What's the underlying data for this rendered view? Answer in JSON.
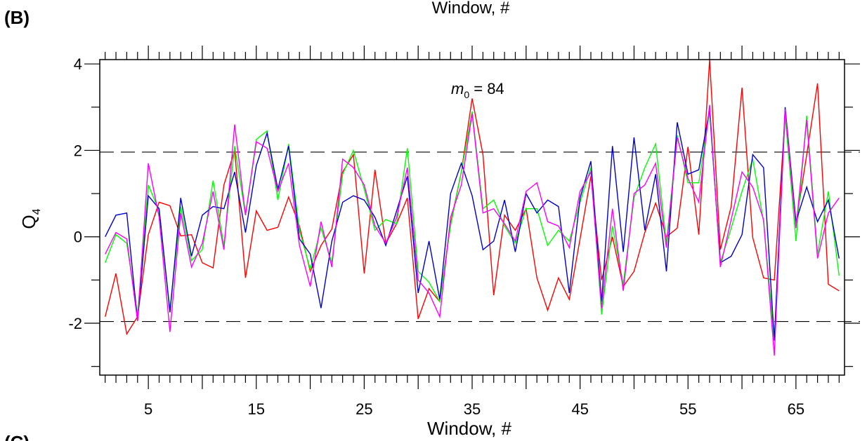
{
  "panel_label": "(B)",
  "next_panel_label": "(C)",
  "top_clipped_label": "Window, #",
  "annotation": {
    "italic": "m",
    "sub": "0",
    "rest": " = 84"
  },
  "chart_data": {
    "type": "line",
    "xlabel": "Window, #",
    "ylabel": "Q",
    "ylabel_sub": "4",
    "xlim": [
      0.5,
      69.5
    ],
    "ylim": [
      -3.2,
      4.1
    ],
    "xticks": [
      5,
      15,
      25,
      35,
      45,
      55,
      65
    ],
    "yticks": [
      -2,
      0,
      2,
      4
    ],
    "reference_lines": [
      1.96,
      -1.96
    ],
    "grid": false,
    "x": [
      1,
      2,
      3,
      4,
      5,
      6,
      7,
      8,
      9,
      10,
      11,
      12,
      13,
      14,
      15,
      16,
      17,
      18,
      19,
      20,
      21,
      22,
      23,
      24,
      25,
      26,
      27,
      28,
      29,
      30,
      31,
      32,
      33,
      34,
      35,
      36,
      37,
      38,
      39,
      40,
      41,
      42,
      43,
      44,
      45,
      46,
      47,
      48,
      49,
      50,
      51,
      52,
      53,
      54,
      55,
      56,
      57,
      58,
      59,
      60,
      61,
      62,
      63,
      64,
      65,
      66,
      67,
      68,
      69
    ],
    "series": [
      {
        "color": "#ff0000",
        "values": [
          -1.85,
          -0.85,
          -2.25,
          -1.85,
          0.05,
          0.8,
          0.72,
          0.02,
          0.05,
          -0.6,
          -0.72,
          1.2,
          2.0,
          -0.95,
          0.6,
          0.15,
          0.22,
          0.92,
          0.25,
          -0.8,
          -0.2,
          0.18,
          1.5,
          1.9,
          -0.85,
          1.55,
          -0.15,
          0.3,
          0.9,
          -1.9,
          -1.2,
          -1.5,
          0.3,
          1.5,
          3.2,
          1.9,
          -1.35,
          0.5,
          0.15,
          0.65,
          -0.95,
          -1.7,
          -0.95,
          -1.45,
          -0.05,
          1.4,
          -1.0,
          0.0,
          -1.15,
          -0.8,
          0.1,
          0.78,
          0.0,
          0.2,
          2.08,
          0.05,
          4.1,
          -0.3,
          0.7,
          3.45,
          -0.02,
          -0.95,
          -1.0,
          2.8,
          0.3,
          1.9,
          3.55,
          -1.1,
          -1.25
        ]
      },
      {
        "color": "#00ff00",
        "values": [
          -0.6,
          0.05,
          -0.15,
          -1.8,
          1.2,
          0.6,
          -1.7,
          0.7,
          -0.55,
          -0.3,
          1.3,
          -0.2,
          2.1,
          0.5,
          2.25,
          2.45,
          0.85,
          2.15,
          0.15,
          -0.75,
          0.2,
          -0.6,
          1.45,
          2.0,
          1.1,
          0.15,
          0.4,
          0.3,
          2.05,
          -0.8,
          -1.05,
          -1.5,
          0.25,
          1.5,
          2.9,
          0.65,
          0.85,
          0.25,
          -0.15,
          0.65,
          0.65,
          -0.2,
          0.15,
          -0.1,
          0.8,
          1.6,
          -1.8,
          0.25,
          -1.1,
          0.9,
          1.6,
          2.15,
          -0.15,
          2.35,
          1.25,
          1.25,
          2.9,
          -0.6,
          0.2,
          1.05,
          1.8,
          0.35,
          -2.4,
          2.8,
          -0.1,
          2.8,
          -0.4,
          1.05,
          -0.9
        ]
      },
      {
        "color": "#0000cc",
        "values": [
          0.0,
          0.5,
          0.55,
          -1.95,
          0.95,
          0.65,
          -1.75,
          0.9,
          -0.45,
          0.5,
          0.7,
          0.65,
          1.5,
          0.1,
          1.65,
          2.4,
          1.1,
          2.1,
          -0.05,
          -0.4,
          -1.65,
          -0.1,
          0.8,
          0.95,
          0.85,
          0.45,
          -0.2,
          0.6,
          1.4,
          -1.3,
          -0.1,
          -1.45,
          1.0,
          1.7,
          0.95,
          -0.3,
          -0.1,
          0.85,
          -0.35,
          1.0,
          0.55,
          0.85,
          0.7,
          -1.3,
          0.9,
          1.75,
          -1.5,
          2.1,
          -0.35,
          2.3,
          0.15,
          1.45,
          -0.8,
          2.65,
          1.45,
          1.55,
          2.95,
          -0.6,
          -0.45,
          0.05,
          1.9,
          1.6,
          -2.4,
          3.0,
          0.35,
          1.15,
          0.35,
          0.85,
          -0.5
        ]
      },
      {
        "color": "#ff00ff",
        "values": [
          -0.4,
          0.1,
          -0.05,
          -1.95,
          1.7,
          0.45,
          -2.2,
          0.55,
          -0.7,
          -0.15,
          1.05,
          -0.3,
          2.6,
          0.5,
          2.2,
          2.05,
          1.05,
          1.7,
          -0.2,
          -1.15,
          0.35,
          -0.7,
          1.8,
          1.6,
          1.2,
          0.25,
          -0.15,
          0.45,
          1.6,
          -1.0,
          -1.3,
          -1.85,
          0.45,
          1.2,
          2.85,
          0.55,
          0.65,
          0.3,
          -0.1,
          1.05,
          1.25,
          0.35,
          0.25,
          -0.25,
          1.05,
          1.5,
          -1.65,
          0.65,
          -1.25,
          1.0,
          1.2,
          1.7,
          -0.25,
          2.3,
          1.35,
          0.8,
          3.05,
          -0.7,
          0.4,
          1.5,
          1.15,
          0.4,
          -2.75,
          2.95,
          0.2,
          2.7,
          -0.5,
          0.55,
          0.9
        ]
      }
    ]
  }
}
